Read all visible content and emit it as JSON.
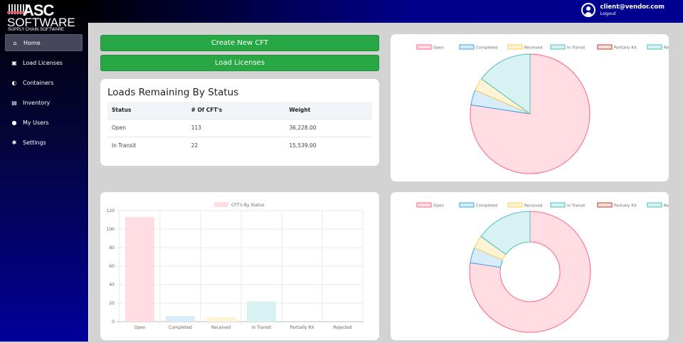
{
  "logo": {
    "line1": "ASC",
    "line2": "SOFTWARE",
    "line3": "SUPPLY CHAIN SOFTWARE"
  },
  "sidebar": {
    "items": [
      {
        "label": "Home",
        "icon": "home-icon",
        "glyph": "⌂",
        "active": true
      },
      {
        "label": "Load Licenses",
        "icon": "store-icon",
        "glyph": "▣"
      },
      {
        "label": "Containers",
        "icon": "globe-icon",
        "glyph": "◐"
      },
      {
        "label": "Inventory",
        "icon": "clipboard-icon",
        "glyph": "▤"
      },
      {
        "label": "My Users",
        "icon": "user-icon",
        "glyph": "●"
      },
      {
        "label": "Settings",
        "icon": "gear-icon",
        "glyph": "✱"
      }
    ]
  },
  "header": {
    "email": "client@vendor.com",
    "logout": "Logout"
  },
  "buttons": {
    "create": "Create New CFT",
    "load": "Load Licenses"
  },
  "loads_table": {
    "title": "Loads Remaining By Status",
    "columns": [
      "Status",
      "# Of CFT's",
      "Weight"
    ],
    "rows": [
      [
        "Open",
        "113",
        "36,228.00"
      ],
      [
        "In Transit",
        "22",
        "15,539.00"
      ]
    ]
  },
  "colors": {
    "accent": "#28a745"
  },
  "chart_data": [
    {
      "type": "bar",
      "legend": [
        "CFT's By Status"
      ],
      "legend_placement": "top",
      "categories": [
        "Open",
        "Completed",
        "Received",
        "In Transit",
        "Partially RX",
        "Rejected"
      ],
      "values": [
        113,
        6,
        5,
        22,
        0,
        0
      ],
      "ylim": [
        0,
        120
      ],
      "yticks": [
        0,
        20,
        40,
        60,
        80,
        100,
        120
      ],
      "grid": true,
      "fill": [
        "#ffdde3",
        "#d8ecfb",
        "#fff3d6",
        "#d8f1f1",
        "#ffe5dc",
        "#d8f1f1"
      ]
    },
    {
      "type": "pie",
      "legend_placement": "top",
      "categories": [
        "Open",
        "Completed",
        "Received",
        "In Transit",
        "Partially RX",
        "Rejected"
      ],
      "values": [
        113,
        6,
        5,
        22,
        0,
        0
      ],
      "fill": [
        "#ffdde3",
        "#d8ecfb",
        "#fff3d6",
        "#d8f1f1",
        "#f5ddd8",
        "#d8f1f1"
      ],
      "stroke": [
        "#ff6384",
        "#36a2eb",
        "#ffcd56",
        "#4bc0c0",
        "#c0392b",
        "#4bc0c0"
      ]
    },
    {
      "type": "doughnut",
      "legend_placement": "top",
      "categories": [
        "Open",
        "Completed",
        "Received",
        "In Transit",
        "Partially RX",
        "Rejected"
      ],
      "values": [
        113,
        6,
        5,
        22,
        0,
        0
      ],
      "fill": [
        "#ffdde3",
        "#d8ecfb",
        "#fff3d6",
        "#d8f1f1",
        "#f5ddd8",
        "#d8f1f1"
      ],
      "stroke": [
        "#ff6384",
        "#36a2eb",
        "#ffcd56",
        "#4bc0c0",
        "#c0392b",
        "#4bc0c0"
      ]
    }
  ]
}
